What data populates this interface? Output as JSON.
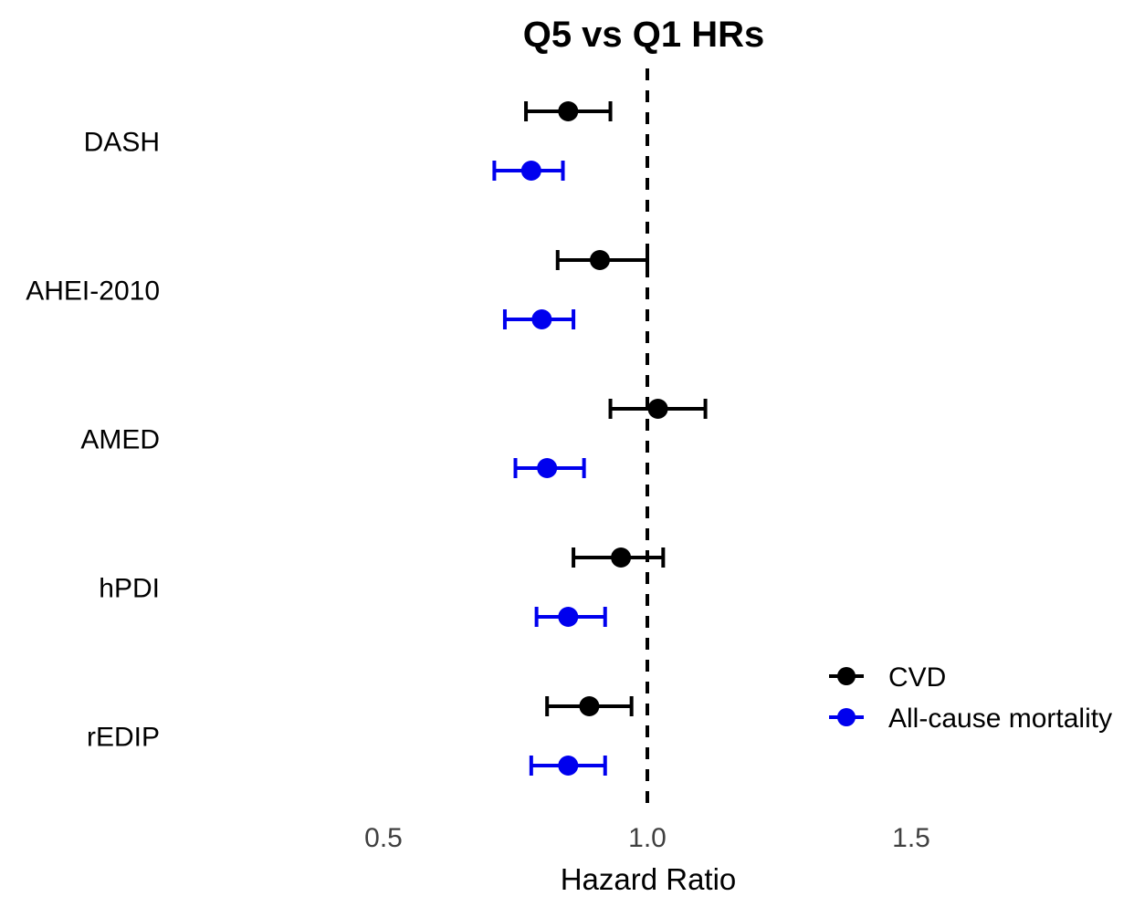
{
  "chart": {
    "title": "Q5 vs Q1 HRs",
    "xlabel": "Hazard Ratio",
    "background_color": "#FFFFFF"
  },
  "legend": {
    "position": "right-center",
    "entries": [
      {
        "label": "CVD",
        "color": "#000000"
      },
      {
        "label": "All-cause mortality",
        "color": "#0000EE"
      }
    ]
  },
  "chart_data": {
    "type": "scatter",
    "subtype": "forest-plot-with-error-bars",
    "title": "Q5 vs Q1 HRs",
    "xlabel": "Hazard Ratio",
    "ylabel": "",
    "categories": [
      "DASH",
      "AHEI-2010",
      "AMED",
      "hPDI",
      "rEDIP"
    ],
    "xticks": [
      0.5,
      1.0,
      1.5
    ],
    "xtick_labels": [
      "0.5",
      "1.0",
      "1.5"
    ],
    "xlim": [
      0.14,
      1.92
    ],
    "grid": false,
    "legend_position": "right-center",
    "reference_line": {
      "x": 1.0,
      "style": "dashed",
      "color": "#000000"
    },
    "series": [
      {
        "name": "CVD",
        "color": "#000000",
        "hr": [
          0.85,
          0.91,
          1.02,
          0.95,
          0.89
        ],
        "ci_low": [
          0.77,
          0.83,
          0.93,
          0.86,
          0.81
        ],
        "ci_high": [
          0.93,
          1.0,
          1.11,
          1.03,
          0.97
        ]
      },
      {
        "name": "All-cause mortality",
        "color": "#0000EE",
        "hr": [
          0.78,
          0.8,
          0.81,
          0.85,
          0.85
        ],
        "ci_low": [
          0.71,
          0.73,
          0.75,
          0.79,
          0.78
        ],
        "ci_high": [
          0.84,
          0.86,
          0.88,
          0.92,
          0.92
        ]
      }
    ]
  }
}
